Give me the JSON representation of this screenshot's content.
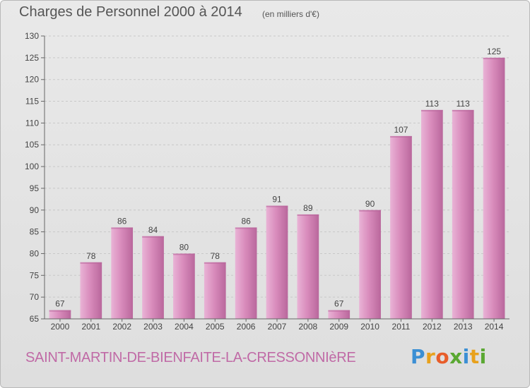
{
  "header": {
    "title": "Charges de Personnel 2000 à 2014",
    "subtitle": "(en milliers d'€)"
  },
  "footer": {
    "commune": "SAINT-MARTIN-DE-BIENFAITE-LA-CRESSONNIèRE",
    "logo_letters": [
      "P",
      "r",
      "o",
      "x",
      "i",
      "t",
      "i"
    ],
    "logo_colors": [
      "#3b8fd4",
      "#e8a11c",
      "#e85d2a",
      "#5aa832",
      "#3b8fd4",
      "#e8a11c",
      "#5aa832"
    ]
  },
  "colors": {
    "bar": "#d98cbc",
    "bar_light": "#e9b3d6",
    "bar_dark": "#b9679c",
    "grid": "#c8c8c8",
    "text": "#444444"
  },
  "chart_data": {
    "type": "bar",
    "title": "Charges de Personnel 2000 à 2014",
    "subtitle": "(en milliers d'€)",
    "categories": [
      "2000",
      "2001",
      "2002",
      "2003",
      "2004",
      "2005",
      "2006",
      "2007",
      "2008",
      "2009",
      "2010",
      "2011",
      "2012",
      "2013",
      "2014"
    ],
    "values": [
      67,
      78,
      86,
      84,
      80,
      78,
      86,
      91,
      89,
      67,
      90,
      107,
      113,
      113,
      125
    ],
    "ylim": [
      65,
      130
    ],
    "yticks": [
      65,
      70,
      75,
      80,
      85,
      90,
      95,
      100,
      105,
      110,
      115,
      120,
      125,
      130
    ],
    "grid": true,
    "xlabel": "",
    "ylabel": ""
  }
}
